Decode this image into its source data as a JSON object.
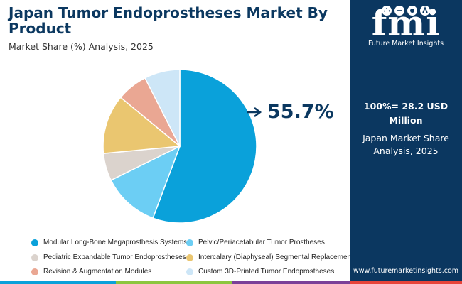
{
  "header": {
    "title": "Japan Tumor Endoprostheses Market By Product",
    "subtitle": "Market Share (%) Analysis, 2025"
  },
  "side_panel": {
    "logo_letters": "fmi",
    "logo_tagline": "Future Market Insights",
    "total_line1": "100%= 28.2 USD",
    "total_line2": "Million",
    "market_share_line1": "Japan Market Share",
    "market_share_line2": "Analysis, 2025",
    "website": "www.futuremarketinsights.com",
    "background_color": "#0b3760"
  },
  "chart_data": {
    "type": "pie",
    "title": "Japan Tumor Endoprostheses Market By Product",
    "subtitle": "Market Share (%) Analysis, 2025",
    "callout_label": "55.7%",
    "legend_position": "bottom",
    "slices": [
      {
        "label": "Modular Long-Bone Megaprosthesis Systems",
        "value": 55.7,
        "color": "#0aa1da"
      },
      {
        "label": "Pelvic/Periacetabular Tumor Prostheses",
        "value": 12.0,
        "color": "#6ccef4"
      },
      {
        "label": "Pediatric Expandable Tumor Endoprostheses",
        "value": 5.8,
        "color": "#dbd3cd"
      },
      {
        "label": "Intercalary (Diaphyseal) Segmental Replacements",
        "value": 12.5,
        "color": "#eac670"
      },
      {
        "label": "Revision & Augmentation Modules",
        "value": 6.5,
        "color": "#eaa793"
      },
      {
        "label": "Custom 3D-Printed Tumor Endoprostheses",
        "value": 7.5,
        "color": "#cde6f7"
      }
    ]
  },
  "bottom_bar_colors": [
    "#0aa1da",
    "#8cc63f",
    "#7b3f98",
    "#e8443a"
  ]
}
